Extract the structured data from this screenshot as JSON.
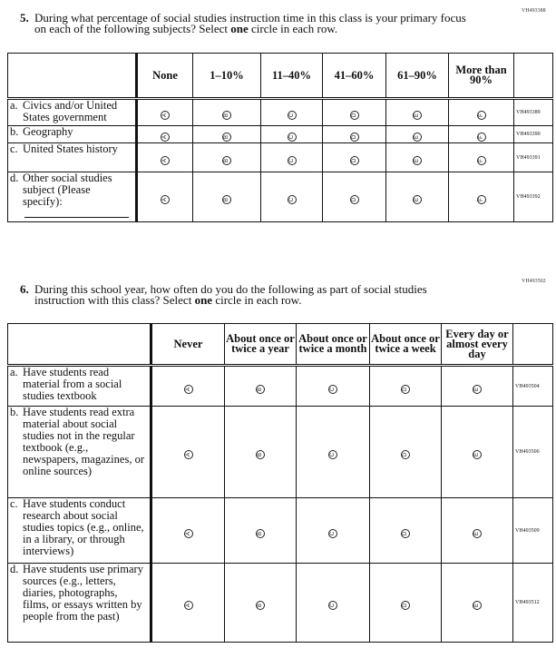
{
  "q5": {
    "code": "VH493388",
    "number": "5.",
    "text_before": "During what percentage of social studies instruction time in this class is your primary focus on each of the following subjects? Select ",
    "bold": "one",
    "text_after": " circle in each row.",
    "columns": [
      "None",
      "1–10%",
      "11–40%",
      "41–60%",
      "61–90%",
      "More than 90%"
    ],
    "bubbles": [
      "A",
      "B",
      "C",
      "D",
      "E",
      "F"
    ],
    "rows": [
      {
        "letter": "a.",
        "label": "Civics and/or United States government",
        "code": "VH493389"
      },
      {
        "letter": "b.",
        "label": "Geography",
        "code": "VH493390"
      },
      {
        "letter": "c.",
        "label": "United States history",
        "code": "VH493391"
      },
      {
        "letter": "d.",
        "label": "Other social studies subject (Please specify):",
        "code": "VH493392"
      }
    ]
  },
  "q6": {
    "code": "VH493502",
    "number": "6.",
    "text_before": "During this school year, how often do you do the following as part of social studies instruction with this class? Select ",
    "bold": "one",
    "text_after": " circle in each row.",
    "columns": [
      "Never",
      "About once or twice a year",
      "About once or twice a month",
      "About once or twice a week",
      "Every day or almost every day"
    ],
    "bubbles": [
      "A",
      "B",
      "C",
      "D",
      "E"
    ],
    "rows": [
      {
        "letter": "a.",
        "label": "Have students read material from a social studies textbook",
        "code": "VH493504"
      },
      {
        "letter": "b.",
        "label": "Have students read extra material about social studies not in the regular textbook (e.g., newspapers, magazines, or online sources)",
        "code": "VH493506"
      },
      {
        "letter": "c.",
        "label": "Have students conduct research about social studies topics (e.g., online, in a library, or through interviews)",
        "code": "VH493509"
      },
      {
        "letter": "d.",
        "label": "Have students use primary sources (e.g., letters, diaries, photographs, films, or essays written by people from the past)",
        "code": "VH493512"
      }
    ]
  }
}
